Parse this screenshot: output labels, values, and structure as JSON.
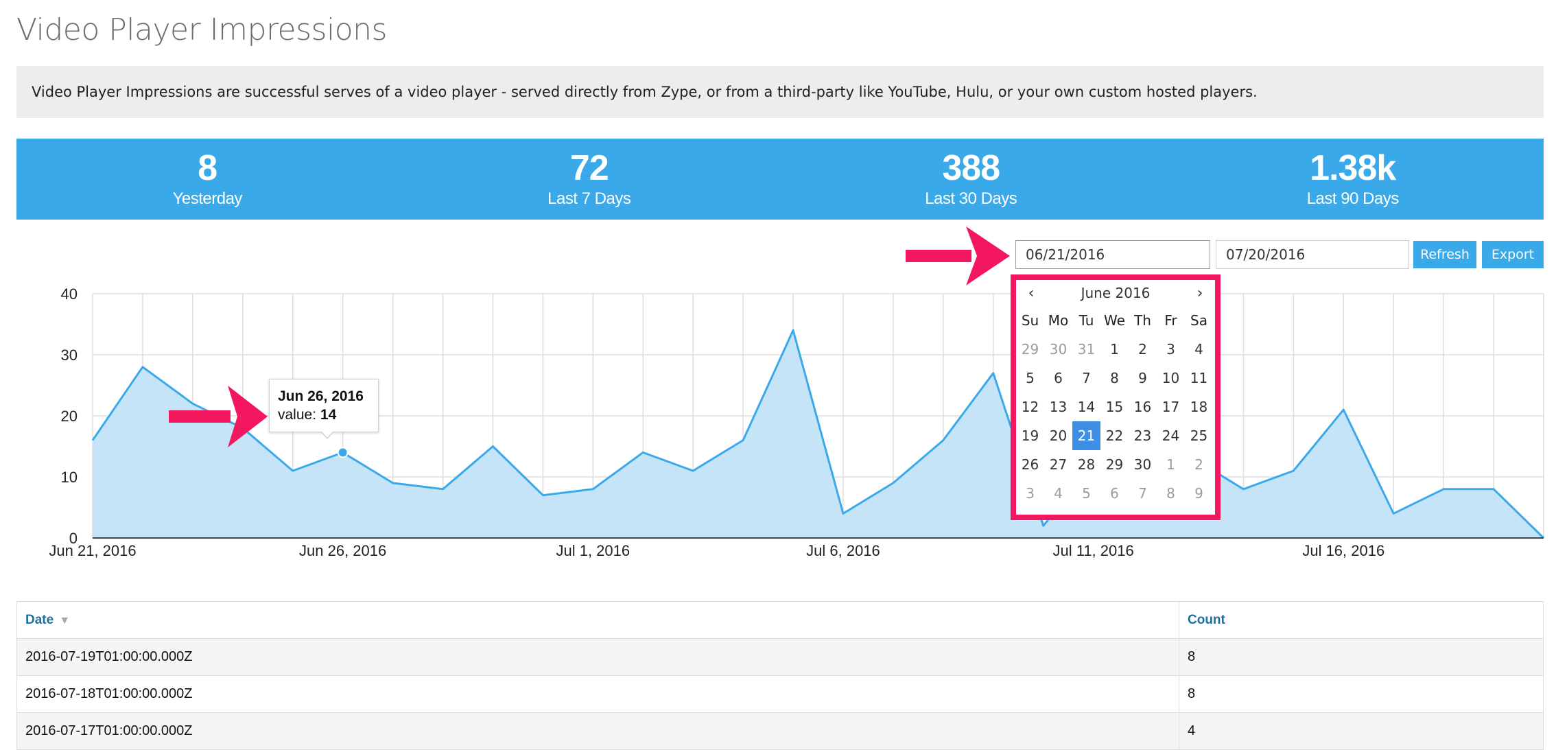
{
  "page": {
    "title": "Video Player Impressions",
    "description": "Video Player Impressions are successful serves of a video player - served directly from Zype, or from a third-party like YouTube, Hulu, or your own custom hosted players."
  },
  "stats": [
    {
      "value": "8",
      "label": "Yesterday"
    },
    {
      "value": "72",
      "label": "Last 7 Days"
    },
    {
      "value": "388",
      "label": "Last 30 Days"
    },
    {
      "value": "1.38k",
      "label": "Last 90 Days"
    }
  ],
  "controls": {
    "start_date": "06/21/2016",
    "end_date": "07/20/2016",
    "refresh_label": "Refresh",
    "export_label": "Export"
  },
  "colors": {
    "accent": "#3aa9ea",
    "annotation_arrow": "#f2175f",
    "chart_fill": "#c3e3f7",
    "chart_line": "#3aa9ea"
  },
  "chart_data": {
    "type": "area",
    "x": [
      "2016-06-21",
      "2016-06-22",
      "2016-06-23",
      "2016-06-24",
      "2016-06-25",
      "2016-06-26",
      "2016-06-27",
      "2016-06-28",
      "2016-06-29",
      "2016-06-30",
      "2016-07-01",
      "2016-07-02",
      "2016-07-03",
      "2016-07-04",
      "2016-07-05",
      "2016-07-06",
      "2016-07-07",
      "2016-07-08",
      "2016-07-09",
      "2016-07-10",
      "2016-07-11",
      "2016-07-12",
      "2016-07-13",
      "2016-07-14",
      "2016-07-15",
      "2016-07-16",
      "2016-07-17",
      "2016-07-18",
      "2016-07-19",
      "2016-07-20"
    ],
    "series": [
      {
        "values": [
          16,
          28,
          22,
          18,
          11,
          14,
          9,
          8,
          15,
          7,
          8,
          14,
          11,
          16,
          34,
          4,
          9,
          16,
          27,
          2,
          12,
          11,
          13,
          8,
          11,
          21,
          4,
          8,
          8,
          0
        ]
      }
    ],
    "ylim": [
      0,
      40
    ],
    "yticks": [
      0,
      10,
      20,
      30,
      40
    ],
    "xtick_labels": [
      "Jun 21, 2016",
      "Jun 26, 2016",
      "Jul 1, 2016",
      "Jul 6, 2016",
      "Jul 11, 2016",
      "Jul 16, 2016"
    ],
    "xtick_dates": [
      "2016-06-21",
      "2016-06-26",
      "2016-07-01",
      "2016-07-06",
      "2016-07-11",
      "2016-07-16"
    ],
    "grid": true,
    "legend": "none",
    "tooltip": {
      "date": "Jun 26, 2016",
      "label": "value:",
      "value": "14"
    }
  },
  "datepicker": {
    "title": "June 2016",
    "prev_icon": "‹",
    "next_icon": "›",
    "weekdays": [
      "Su",
      "Mo",
      "Tu",
      "We",
      "Th",
      "Fr",
      "Sa"
    ],
    "weeks": [
      [
        {
          "d": "29",
          "m": true
        },
        {
          "d": "30",
          "m": true
        },
        {
          "d": "31",
          "m": true
        },
        {
          "d": "1"
        },
        {
          "d": "2"
        },
        {
          "d": "3"
        },
        {
          "d": "4"
        }
      ],
      [
        {
          "d": "5"
        },
        {
          "d": "6"
        },
        {
          "d": "7"
        },
        {
          "d": "8"
        },
        {
          "d": "9"
        },
        {
          "d": "10"
        },
        {
          "d": "11"
        }
      ],
      [
        {
          "d": "12"
        },
        {
          "d": "13"
        },
        {
          "d": "14"
        },
        {
          "d": "15"
        },
        {
          "d": "16"
        },
        {
          "d": "17"
        },
        {
          "d": "18"
        }
      ],
      [
        {
          "d": "19"
        },
        {
          "d": "20"
        },
        {
          "d": "21",
          "s": true
        },
        {
          "d": "22"
        },
        {
          "d": "23"
        },
        {
          "d": "24"
        },
        {
          "d": "25"
        }
      ],
      [
        {
          "d": "26"
        },
        {
          "d": "27"
        },
        {
          "d": "28"
        },
        {
          "d": "29"
        },
        {
          "d": "30"
        },
        {
          "d": "1",
          "m": true
        },
        {
          "d": "2",
          "m": true
        }
      ],
      [
        {
          "d": "3",
          "m": true
        },
        {
          "d": "4",
          "m": true
        },
        {
          "d": "5",
          "m": true
        },
        {
          "d": "6",
          "m": true
        },
        {
          "d": "7",
          "m": true
        },
        {
          "d": "8",
          "m": true
        },
        {
          "d": "9",
          "m": true
        }
      ]
    ]
  },
  "table": {
    "headers": {
      "date": "Date",
      "count": "Count"
    },
    "rows": [
      {
        "date": "2016-07-19T01:00:00.000Z",
        "count": "8"
      },
      {
        "date": "2016-07-18T01:00:00.000Z",
        "count": "8"
      },
      {
        "date": "2016-07-17T01:00:00.000Z",
        "count": "4"
      }
    ]
  }
}
